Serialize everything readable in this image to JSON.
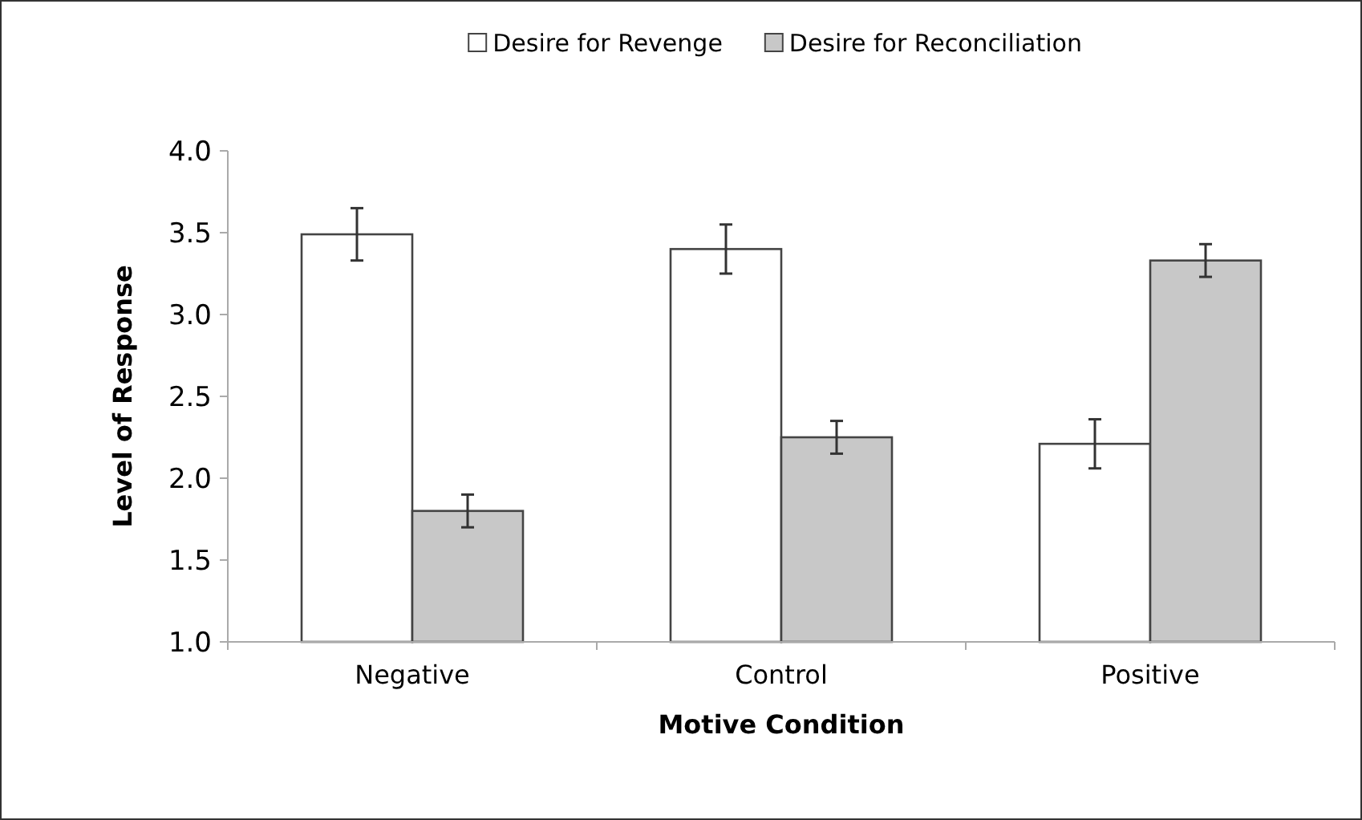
{
  "chart_data": {
    "type": "bar",
    "xlabel": "Motive Condition",
    "ylabel": "Level of Response",
    "categories": [
      "Negative",
      "Control",
      "Positive"
    ],
    "series": [
      {
        "name": "Desire for Revenge",
        "color": "#ffffff",
        "values": [
          3.49,
          3.4,
          2.21
        ],
        "errors": [
          0.16,
          0.15,
          0.15
        ]
      },
      {
        "name": "Desire for Reconciliation",
        "color": "#c8c8c8",
        "values": [
          1.8,
          2.25,
          3.33
        ],
        "errors": [
          0.1,
          0.1,
          0.1
        ]
      }
    ],
    "ylim": [
      1,
      4
    ],
    "yticks": [
      {
        "value": 1,
        "label": "1.0"
      },
      {
        "value": 1.5,
        "label": "1.5"
      },
      {
        "value": 2,
        "label": "2.0"
      },
      {
        "value": 2.5,
        "label": "2.5"
      },
      {
        "value": 3,
        "label": "3.0"
      },
      {
        "value": 3.5,
        "label": "3.5"
      },
      {
        "value": 4,
        "label": "4.0"
      }
    ],
    "grid": false,
    "legend": "top"
  }
}
